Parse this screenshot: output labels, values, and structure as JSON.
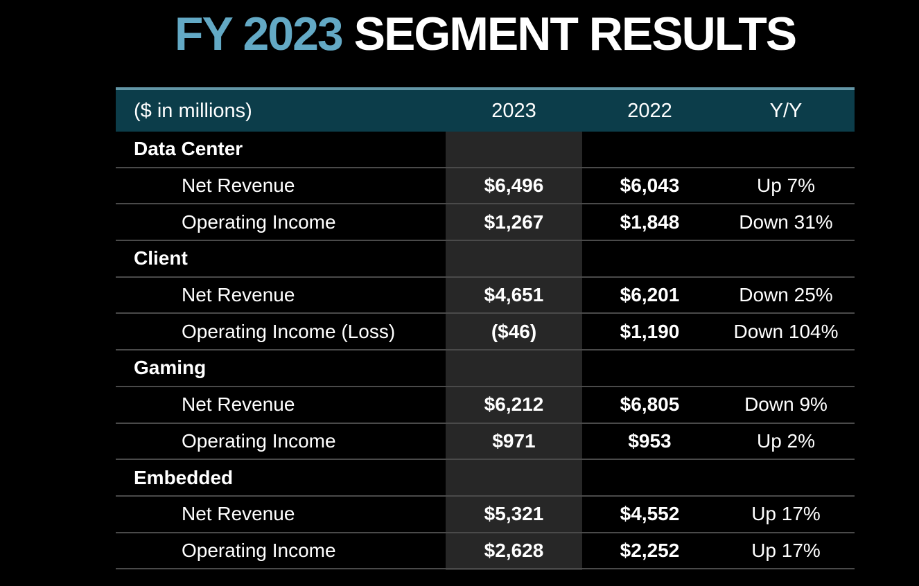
{
  "title": {
    "highlight": "FY 2023",
    "rest": " SEGMENT RESULTS"
  },
  "colors": {
    "background": "#000000",
    "text": "#ffffff",
    "title_highlight": "#63a9c5",
    "header_bg": "#0c3d4a",
    "header_top_border": "#6296a6",
    "highlight_column_bg": "#272727",
    "row_divider": "#4a4a4a"
  },
  "table": {
    "unit_label": "($ in millions)",
    "columns": [
      "2023",
      "2022",
      "Y/Y"
    ],
    "highlighted_column": "2023",
    "sections": [
      {
        "name": "Data Center",
        "rows": [
          {
            "label": "Net Revenue",
            "y2023": "$6,496",
            "y2022": "$6,043",
            "yoy": "Up 7%"
          },
          {
            "label": "Operating Income",
            "y2023": "$1,267",
            "y2022": "$1,848",
            "yoy": "Down 31%"
          }
        ]
      },
      {
        "name": "Client",
        "rows": [
          {
            "label": "Net Revenue",
            "y2023": "$4,651",
            "y2022": "$6,201",
            "yoy": "Down 25%"
          },
          {
            "label": "Operating Income (Loss)",
            "y2023": "($46)",
            "y2022": "$1,190",
            "yoy": "Down 104%"
          }
        ]
      },
      {
        "name": "Gaming",
        "rows": [
          {
            "label": "Net Revenue",
            "y2023": "$6,212",
            "y2022": "$6,805",
            "yoy": "Down 9%"
          },
          {
            "label": "Operating Income",
            "y2023": "$971",
            "y2022": "$953",
            "yoy": "Up 2%"
          }
        ]
      },
      {
        "name": "Embedded",
        "rows": [
          {
            "label": "Net Revenue",
            "y2023": "$5,321",
            "y2022": "$4,552",
            "yoy": "Up 17%"
          },
          {
            "label": "Operating Income",
            "y2023": "$2,628",
            "y2022": "$2,252",
            "yoy": "Up 17%"
          }
        ]
      }
    ]
  }
}
